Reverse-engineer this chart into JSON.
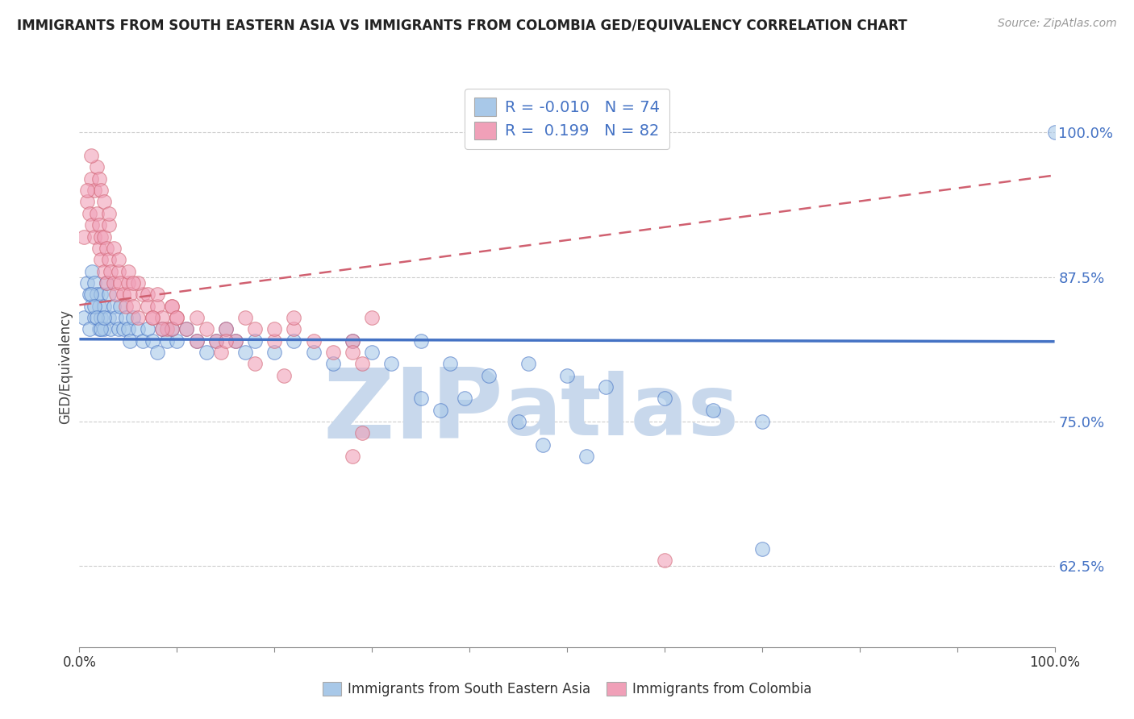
{
  "title": "IMMIGRANTS FROM SOUTH EASTERN ASIA VS IMMIGRANTS FROM COLOMBIA GED/EQUIVALENCY CORRELATION CHART",
  "source": "Source: ZipAtlas.com",
  "ylabel": "GED/Equivalency",
  "color_blue": "#a8c8e8",
  "color_pink": "#f0a0b8",
  "color_blue_line": "#4472c4",
  "color_pink_line": "#d06070",
  "watermark_zip": "#c8d8ec",
  "watermark_atlas": "#c8d8ec",
  "legend_label1": "Immigrants from South Eastern Asia",
  "legend_label2": "Immigrants from Colombia",
  "xlim": [
    0.0,
    1.0
  ],
  "ylim": [
    0.555,
    1.04
  ],
  "yticks": [
    0.625,
    0.75,
    0.875,
    1.0
  ],
  "ytick_labels": [
    "62.5%",
    "75.0%",
    "87.5%",
    "100.0%"
  ],
  "blue_x": [
    0.005,
    0.008,
    0.01,
    0.012,
    0.013,
    0.015,
    0.015,
    0.018,
    0.02,
    0.02,
    0.022,
    0.022,
    0.025,
    0.025,
    0.028,
    0.03,
    0.03,
    0.032,
    0.035,
    0.038,
    0.04,
    0.042,
    0.045,
    0.048,
    0.05,
    0.052,
    0.055,
    0.06,
    0.065,
    0.07,
    0.075,
    0.08,
    0.085,
    0.09,
    0.095,
    0.1,
    0.11,
    0.12,
    0.13,
    0.14,
    0.15,
    0.16,
    0.17,
    0.18,
    0.2,
    0.22,
    0.24,
    0.26,
    0.28,
    0.3,
    0.32,
    0.35,
    0.38,
    0.42,
    0.46,
    0.5,
    0.54,
    0.6,
    0.65,
    0.7,
    0.35,
    0.37,
    0.395,
    0.45,
    0.01,
    0.012,
    0.015,
    0.018,
    0.022,
    0.025,
    0.475,
    0.52,
    0.7,
    1.0
  ],
  "blue_y": [
    0.84,
    0.87,
    0.86,
    0.85,
    0.88,
    0.84,
    0.87,
    0.86,
    0.85,
    0.83,
    0.86,
    0.84,
    0.85,
    0.83,
    0.87,
    0.84,
    0.86,
    0.83,
    0.85,
    0.84,
    0.83,
    0.85,
    0.83,
    0.84,
    0.83,
    0.82,
    0.84,
    0.83,
    0.82,
    0.83,
    0.82,
    0.81,
    0.83,
    0.82,
    0.83,
    0.82,
    0.83,
    0.82,
    0.81,
    0.82,
    0.83,
    0.82,
    0.81,
    0.82,
    0.81,
    0.82,
    0.81,
    0.8,
    0.82,
    0.81,
    0.8,
    0.82,
    0.8,
    0.79,
    0.8,
    0.79,
    0.78,
    0.77,
    0.76,
    0.75,
    0.77,
    0.76,
    0.77,
    0.75,
    0.83,
    0.86,
    0.85,
    0.84,
    0.83,
    0.84,
    0.73,
    0.72,
    0.64,
    1.0
  ],
  "pink_x": [
    0.005,
    0.008,
    0.01,
    0.012,
    0.013,
    0.015,
    0.015,
    0.018,
    0.02,
    0.02,
    0.022,
    0.022,
    0.025,
    0.025,
    0.028,
    0.028,
    0.03,
    0.032,
    0.035,
    0.038,
    0.04,
    0.042,
    0.045,
    0.048,
    0.05,
    0.052,
    0.055,
    0.06,
    0.065,
    0.07,
    0.075,
    0.08,
    0.085,
    0.09,
    0.095,
    0.1,
    0.11,
    0.12,
    0.13,
    0.14,
    0.15,
    0.16,
    0.17,
    0.18,
    0.2,
    0.22,
    0.24,
    0.26,
    0.28,
    0.3,
    0.018,
    0.02,
    0.022,
    0.025,
    0.03,
    0.035,
    0.04,
    0.05,
    0.06,
    0.07,
    0.095,
    0.12,
    0.145,
    0.18,
    0.21,
    0.075,
    0.085,
    0.03,
    0.055,
    0.012,
    0.28,
    0.08,
    0.22,
    0.29,
    0.095,
    0.15,
    0.1,
    0.2,
    0.008,
    0.29,
    0.6,
    0.28
  ],
  "pink_y": [
    0.91,
    0.94,
    0.93,
    0.96,
    0.92,
    0.95,
    0.91,
    0.93,
    0.9,
    0.92,
    0.91,
    0.89,
    0.88,
    0.91,
    0.87,
    0.9,
    0.89,
    0.88,
    0.87,
    0.86,
    0.88,
    0.87,
    0.86,
    0.85,
    0.87,
    0.86,
    0.85,
    0.84,
    0.86,
    0.85,
    0.84,
    0.85,
    0.84,
    0.83,
    0.85,
    0.84,
    0.83,
    0.84,
    0.83,
    0.82,
    0.83,
    0.82,
    0.84,
    0.83,
    0.82,
    0.83,
    0.82,
    0.81,
    0.82,
    0.84,
    0.97,
    0.96,
    0.95,
    0.94,
    0.92,
    0.9,
    0.89,
    0.88,
    0.87,
    0.86,
    0.83,
    0.82,
    0.81,
    0.8,
    0.79,
    0.84,
    0.83,
    0.93,
    0.87,
    0.98,
    0.81,
    0.86,
    0.84,
    0.8,
    0.85,
    0.82,
    0.84,
    0.83,
    0.95,
    0.74,
    0.63,
    0.72
  ]
}
